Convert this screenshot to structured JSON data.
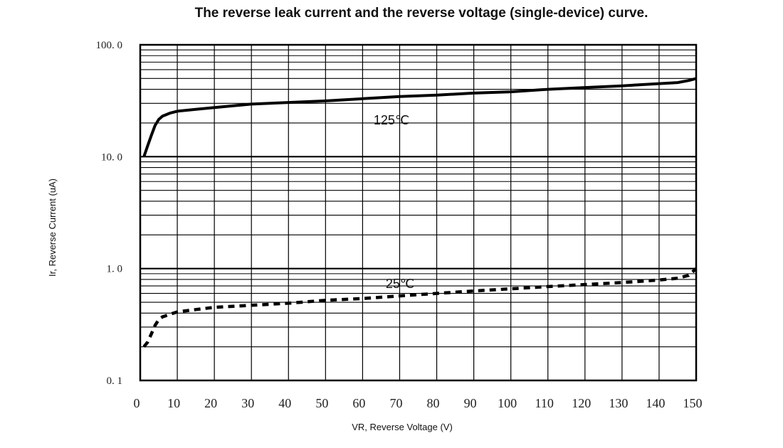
{
  "chart_data": {
    "type": "line",
    "title": "The reverse leak current and the reverse voltage (single-device) curve.",
    "xlabel": "VR, Reverse Voltage (V)",
    "ylabel": "Ir, Reverse Current (uA)",
    "x_scale": "linear",
    "y_scale": "log",
    "xlim": [
      0,
      150
    ],
    "ylim": [
      0.1,
      100
    ],
    "grid": true,
    "x_ticks": [
      "0",
      "10",
      "20",
      "30",
      "40",
      "50",
      "60",
      "70",
      "80",
      "90",
      "100",
      "110",
      "120",
      "130",
      "140",
      "150"
    ],
    "y_ticks": [
      "0. 1",
      "1. 0",
      "10. 0",
      "100. 0"
    ],
    "series": [
      {
        "name": "125℃",
        "style": "solid",
        "color": "#000000",
        "x": [
          1,
          2,
          3,
          4,
          5,
          6,
          8,
          10,
          15,
          20,
          30,
          40,
          50,
          60,
          70,
          80,
          90,
          100,
          110,
          120,
          130,
          140,
          145,
          148,
          150
        ],
        "y": [
          10,
          12.5,
          15.5,
          19,
          21.5,
          23,
          24.5,
          25.5,
          26.5,
          27.5,
          29.5,
          30.5,
          31.5,
          33,
          34.5,
          35.5,
          37,
          38,
          40,
          41.5,
          43,
          45,
          46,
          48,
          50
        ]
      },
      {
        "name": "25℃",
        "style": "dashed",
        "color": "#000000",
        "x": [
          1,
          2,
          3,
          4,
          5,
          6,
          8,
          10,
          15,
          20,
          30,
          40,
          50,
          60,
          70,
          80,
          90,
          100,
          110,
          120,
          130,
          140,
          145,
          148,
          150
        ],
        "y": [
          0.2,
          0.22,
          0.26,
          0.31,
          0.35,
          0.37,
          0.39,
          0.41,
          0.43,
          0.45,
          0.47,
          0.49,
          0.52,
          0.54,
          0.57,
          0.6,
          0.63,
          0.66,
          0.69,
          0.72,
          0.75,
          0.79,
          0.82,
          0.87,
          1.0
        ]
      }
    ]
  }
}
